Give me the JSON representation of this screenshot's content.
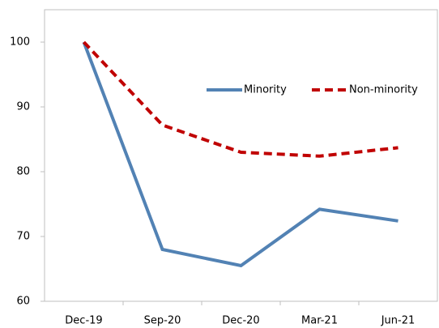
{
  "chart_data": {
    "type": "line",
    "categories": [
      "Dec-19",
      "Sep-20",
      "Dec-20",
      "Mar-21",
      "Jun-21"
    ],
    "series": [
      {
        "name": "Minority",
        "color": "#5282b4",
        "dash": false,
        "values": [
          100,
          68,
          65.5,
          74.2,
          72.4
        ]
      },
      {
        "name": "Non-minority",
        "color": "#c00000",
        "dash": true,
        "values": [
          100,
          87.2,
          83,
          82.4,
          83.7
        ]
      }
    ],
    "ylim": [
      60,
      105
    ],
    "yticks": [
      60,
      70,
      80,
      90,
      100
    ],
    "grid": false
  }
}
